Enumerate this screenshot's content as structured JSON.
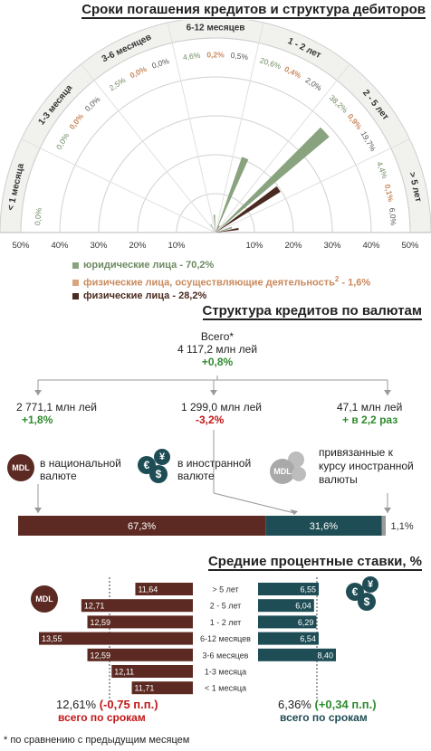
{
  "section1": {
    "title": "Сроки погашения кредитов и структура дебиторов"
  },
  "chart_data": [
    {
      "type": "radial-bar",
      "title": "Сроки погашения кредитов и структура дебиторов",
      "categories": [
        "< 1 месяца",
        "1-3 месяца",
        "3-6 месяцев",
        "6-12 месяцев",
        "1 - 2 лет",
        "2 - 5 лет",
        "> 5 лет"
      ],
      "series": [
        {
          "name": "юридические лица - 70,2%",
          "color": "#8aa37f",
          "labels": [
            "0,0%",
            "0,0%",
            "2,5%",
            "4,6%",
            "20,6%",
            "38,2%",
            "4,4%"
          ],
          "values": [
            0.0,
            0.0,
            2.5,
            4.6,
            20.6,
            38.2,
            4.4
          ]
        },
        {
          "name": "физические лица, осуществляющие деятельность",
          "legend_suffix": " - 1,6%",
          "color": "#d9a37e",
          "labels": [
            "",
            "0,0%",
            "0,0%",
            "0,2%",
            "0,4%",
            "0,9%",
            "0,1%"
          ],
          "values": [
            0.0,
            0.0,
            0.0,
            0.2,
            0.4,
            0.9,
            0.1
          ]
        },
        {
          "name": "физические лица - 28,2%",
          "color": "#4a2a20",
          "labels": [
            "",
            "0,0%",
            "0,0%",
            "0,5%",
            "2,0%",
            "19,7%",
            "6,0%"
          ],
          "values": [
            0.0,
            0.0,
            0.0,
            0.5,
            2.0,
            19.7,
            6.0
          ]
        }
      ],
      "axis": {
        "ticks": [
          "50%",
          "40%",
          "30%",
          "20%",
          "10%",
          "10%",
          "20%",
          "30%",
          "40%",
          "50%"
        ],
        "max": 50
      },
      "superscript": "2"
    },
    {
      "type": "bar",
      "title": "Структура кредитов по валютам",
      "orientation": "stacked-horizontal",
      "categories": [
        "в национальной валюте",
        "в иностранной валюте",
        "привязанные к курсу иностранной валюты"
      ],
      "values": [
        67.3,
        31.6,
        1.1
      ],
      "labels": [
        "67,3%",
        "31,6%",
        "1,1%"
      ],
      "colors": [
        "#5c2a22",
        "#1f4d55",
        "#9a9a9a"
      ]
    },
    {
      "type": "bar",
      "title": "Средние процентные ставки, %",
      "orientation": "horizontal-butterfly",
      "categories": [
        "> 5 лет",
        "2 - 5 лет",
        "1 - 2 лет",
        "6-12 месяцев",
        "3-6 месяцев",
        "1-3 месяца",
        "< 1 месяца"
      ],
      "series": [
        {
          "name": "MDL",
          "color": "#5c2a22",
          "values": [
            11.64,
            12.71,
            12.59,
            13.55,
            12.59,
            12.11,
            11.71
          ],
          "labels": [
            "11,64",
            "12,71",
            "12,59",
            "13,55",
            "12,59",
            "12,11",
            "11,71"
          ]
        },
        {
          "name": "foreign",
          "color": "#1f4d55",
          "values": [
            6.55,
            6.04,
            6.29,
            6.54,
            8.4,
            null,
            null
          ],
          "labels": [
            "6,55",
            "6,04",
            "6,29",
            "6,54",
            "8,40",
            "",
            ""
          ]
        }
      ]
    }
  ],
  "section2": {
    "title": "Структура кредитов по валютам",
    "total_label": "Всего*",
    "total_value": "4 117,2 млн лей",
    "total_change": "+0,8%",
    "col1_value": "2 771,1 млн лей",
    "col1_change": "+1,8%",
    "col1_desc1": "в национальной",
    "col1_desc2": "валюте",
    "col2_value": "1 299,0 млн лей",
    "col2_change": "-3,2%",
    "col2_desc1": "в иностранной",
    "col2_desc2": "валюте",
    "col3_value": "47,1 млн лей",
    "col3_change": "+ в 2,2 раз",
    "col3_desc1": "привязанные к",
    "col3_desc2": "курсу иностранной",
    "col3_desc3": "валюты",
    "mdl_badge": "MDL",
    "coin_euro": "€",
    "coin_yen": "¥",
    "coin_dollar": "$"
  },
  "section3": {
    "title": "Средние процентные ставки, %",
    "mdl_badge": "MDL",
    "left_total": "12,61%",
    "left_change": "(-0,75 п.п.)",
    "left_caption": "всего по срокам",
    "right_total": "6,36%",
    "right_change": "(+0,34 п.п.)",
    "right_caption": "всего по срокам"
  },
  "footer": {
    "note": "* по сравнению с предыдущим месяцем"
  }
}
